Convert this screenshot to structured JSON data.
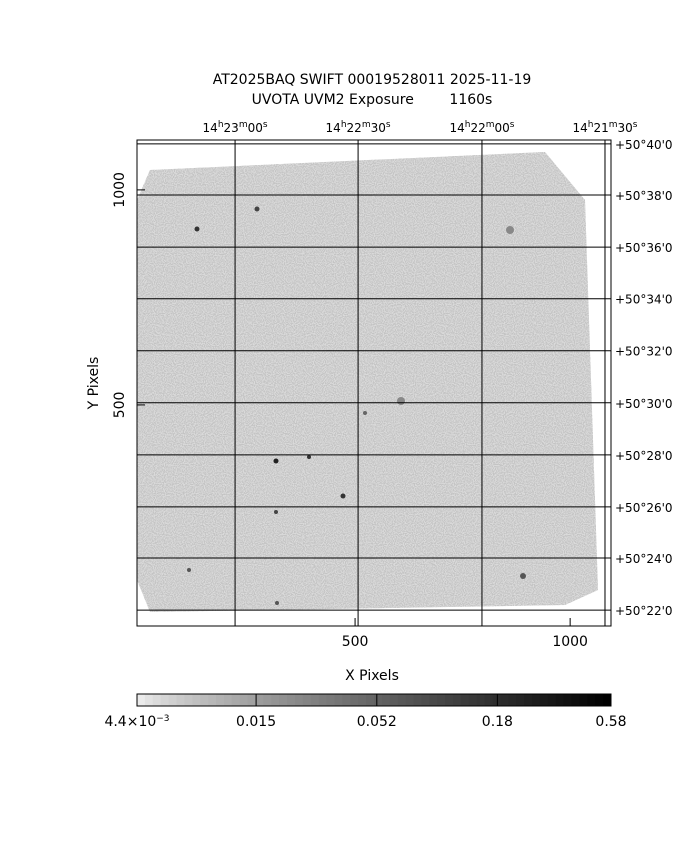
{
  "chart_data": {
    "type": "image",
    "title": "AT2025BAQ SWIFT 00019528011 2025-11-19",
    "subtitle": "UVOTA UVM2 Exposure        1160s",
    "xlabel": "X Pixels",
    "ylabel": "Y Pixels",
    "xlim": [
      -7,
      1095
    ],
    "ylim": [
      -14,
      1116
    ],
    "xticks": [
      500,
      1000
    ],
    "yticks": [
      500,
      1000
    ],
    "ra_ticks": [
      {
        "value": 221,
        "label": "14h23m00s"
      },
      {
        "value": 507,
        "label": "14h22m30s"
      },
      {
        "value": 795,
        "label": "14h22m00s"
      },
      {
        "value": 1081,
        "label": "14h21m30s"
      }
    ],
    "dec_ticks": [
      {
        "value": 1107,
        "label": "+50°40'0"
      },
      {
        "value": 988,
        "label": "+50°38'0"
      },
      {
        "value": 867,
        "label": "+50°36'0"
      },
      {
        "value": 747,
        "label": "+50°34'0"
      },
      {
        "value": 626,
        "label": "+50°32'0"
      },
      {
        "value": 505,
        "label": "+50°30'0"
      },
      {
        "value": 384,
        "label": "+50°28'0"
      },
      {
        "value": 263,
        "label": "+50°26'0"
      },
      {
        "value": 144,
        "label": "+50°24'0"
      },
      {
        "value": 23,
        "label": "+50°22'0"
      }
    ],
    "colorbar": {
      "lim": [
        0.0044,
        0.58
      ],
      "log": true,
      "ticks": [
        {
          "value": 0.0044,
          "label": "4.4×10−3"
        },
        0.015,
        0.052,
        0.18,
        0.58
      ]
    }
  }
}
